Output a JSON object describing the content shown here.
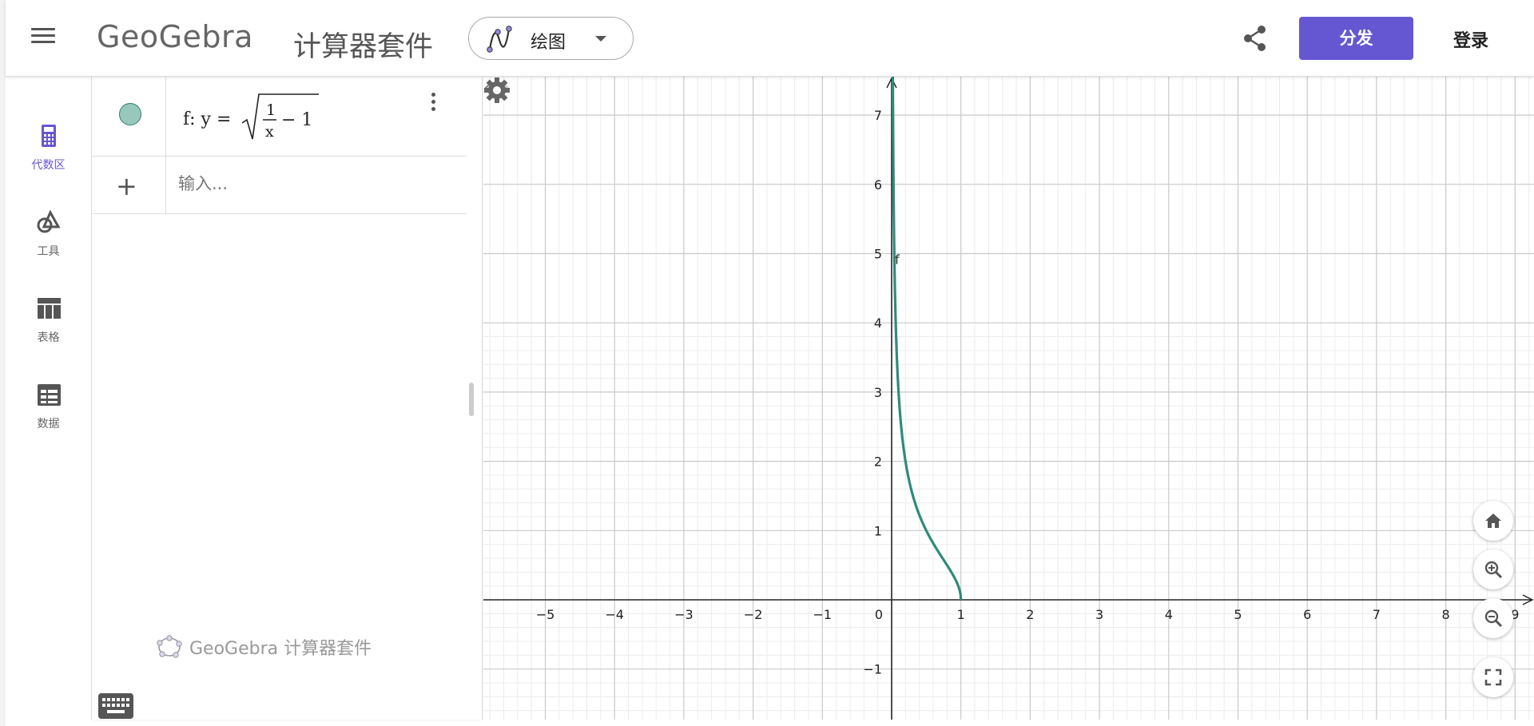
{
  "header": {
    "logo_text": "GeoGebra",
    "suite_title": "计算器套件",
    "app_picker_label": "绘图",
    "publish_label": "分发",
    "login_label": "登录"
  },
  "rail": {
    "items": [
      {
        "label": "代数区",
        "icon": "calculator-icon",
        "active": true
      },
      {
        "label": "工具",
        "icon": "shapes-icon",
        "active": false
      },
      {
        "label": "表格",
        "icon": "table-icon",
        "active": false
      },
      {
        "label": "数据",
        "icon": "spreadsheet-icon",
        "active": false
      }
    ]
  },
  "algebra": {
    "formula_prefix": "f: y =",
    "frac_num": "1",
    "frac_den": "x",
    "formula_tail": "− 1",
    "input_placeholder": "输入...",
    "footer": "GeoGebra 计算器套件"
  },
  "graph": {
    "function_label": "f",
    "curve_color": "#2e8b7a",
    "origin_label": "0",
    "x_ticks": [
      "−5",
      "−4",
      "−3",
      "−2",
      "−1",
      "1",
      "2",
      "3",
      "4",
      "5",
      "6",
      "7",
      "8",
      "9"
    ],
    "y_ticks": [
      "7",
      "6",
      "5",
      "4",
      "3",
      "2",
      "1",
      "−1"
    ]
  },
  "colors": {
    "accent": "#6557d2",
    "curve": "#2e8b7a",
    "marble": "#98c8bc"
  }
}
